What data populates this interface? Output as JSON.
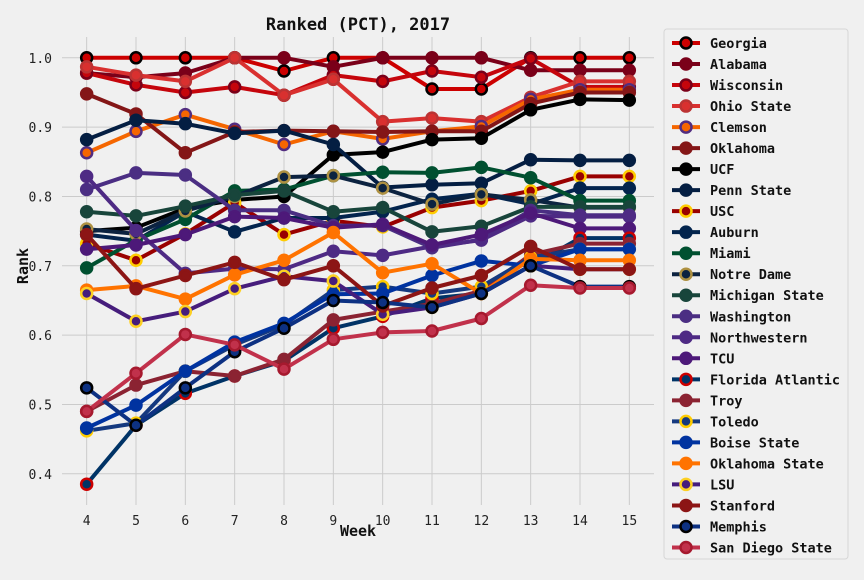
{
  "chart_data": {
    "type": "line",
    "title": "Ranked (PCT), 2017",
    "xlabel": "Week",
    "ylabel": "Rank",
    "x": [
      4,
      5,
      6,
      7,
      8,
      9,
      10,
      11,
      12,
      13,
      14,
      15
    ],
    "xlim": [
      3.5,
      15.5
    ],
    "ylim": [
      0.355,
      1.03
    ],
    "yticks": [
      0.4,
      0.5,
      0.6,
      0.7,
      0.8,
      0.9,
      1.0
    ],
    "ytick_labels": [
      "0.4",
      "0.5",
      "0.6",
      "0.7",
      "0.8",
      "0.9",
      "1.0"
    ],
    "grid": true,
    "legend_position": "right",
    "series": [
      {
        "name": "Georgia",
        "color": "#cc0000",
        "edge": "#000000",
        "values": [
          1.0,
          1.0,
          1.0,
          1.0,
          0.981,
          1.0,
          1.0,
          0.955,
          0.955,
          1.0,
          1.0,
          1.0
        ]
      },
      {
        "name": "Alabama",
        "color": "#7a0019",
        "edge": "#7a0019",
        "values": [
          0.978,
          0.972,
          0.978,
          1.0,
          1.0,
          0.987,
          1.0,
          1.0,
          1.0,
          0.982,
          0.982,
          0.982
        ]
      },
      {
        "name": "Wisconsin",
        "color": "#c5050c",
        "edge": "#7a0019",
        "values": [
          0.978,
          0.961,
          0.95,
          0.958,
          0.946,
          0.975,
          0.966,
          0.981,
          0.972,
          0.999,
          0.958,
          0.958
        ]
      },
      {
        "name": "Ohio State",
        "color": "#d9302f",
        "edge": "#bb3333",
        "values": [
          0.987,
          0.975,
          0.966,
          1.0,
          0.946,
          0.969,
          0.908,
          0.913,
          0.908,
          0.943,
          0.966,
          0.966
        ]
      },
      {
        "name": "Clemson",
        "color": "#f56600",
        "edge": "#522d80",
        "values": [
          0.863,
          0.894,
          0.918,
          0.897,
          0.875,
          0.894,
          0.883,
          0.894,
          0.901,
          0.94,
          0.954,
          0.954
        ]
      },
      {
        "name": "Oklahoma",
        "color": "#841617",
        "edge": "#841617",
        "values": [
          0.948,
          0.919,
          0.863,
          0.893,
          0.895,
          0.894,
          0.893,
          0.894,
          0.894,
          0.934,
          0.95,
          0.95
        ]
      },
      {
        "name": "UCF",
        "color": "#000000",
        "edge": "#000000",
        "values": [
          0.75,
          0.755,
          0.783,
          0.795,
          0.8,
          0.86,
          0.864,
          0.882,
          0.884,
          0.925,
          0.94,
          0.939
        ]
      },
      {
        "name": "Penn State",
        "color": "#041e42",
        "edge": "#041e42",
        "values": [
          0.882,
          0.91,
          0.905,
          0.891,
          0.895,
          0.875,
          0.813,
          0.817,
          0.819,
          0.853,
          0.852,
          0.852
        ]
      },
      {
        "name": "USC",
        "color": "#990000",
        "edge": "#ffcc00",
        "values": [
          0.732,
          0.708,
          0.746,
          0.791,
          0.745,
          0.765,
          0.756,
          0.784,
          0.794,
          0.808,
          0.829,
          0.829
        ]
      },
      {
        "name": "Auburn",
        "color": "#03244d",
        "edge": "#03244d",
        "values": [
          0.745,
          0.736,
          0.778,
          0.749,
          0.769,
          0.769,
          0.778,
          0.796,
          0.804,
          0.789,
          0.812,
          0.812
        ]
      },
      {
        "name": "Miami",
        "color": "#005030",
        "edge": "#005030",
        "values": [
          0.697,
          0.737,
          0.767,
          0.808,
          0.81,
          0.83,
          0.835,
          0.834,
          0.842,
          0.827,
          0.794,
          0.794
        ]
      },
      {
        "name": "Notre Dame",
        "color": "#0c2340",
        "edge": "#ae9142",
        "values": [
          0.753,
          0.746,
          0.779,
          0.8,
          0.828,
          0.83,
          0.812,
          0.789,
          0.803,
          0.795,
          0.784,
          0.784
        ]
      },
      {
        "name": "Michigan State",
        "color": "#18453b",
        "edge": "#18453b",
        "values": [
          0.778,
          0.772,
          0.786,
          0.802,
          0.808,
          0.778,
          0.784,
          0.749,
          0.757,
          0.785,
          0.785,
          0.785
        ]
      },
      {
        "name": "Washington",
        "color": "#4b2e83",
        "edge": "#4b2e83",
        "values": [
          0.81,
          0.834,
          0.831,
          0.78,
          0.78,
          0.758,
          0.758,
          0.726,
          0.738,
          0.78,
          0.773,
          0.773
        ]
      },
      {
        "name": "Northwestern",
        "color": "#4e2a84",
        "edge": "#4e2a84",
        "values": [
          0.829,
          0.751,
          0.689,
          0.696,
          0.695,
          0.721,
          0.715,
          0.728,
          0.737,
          0.772,
          0.771,
          0.771
        ]
      },
      {
        "name": "TCU",
        "color": "#4d1979",
        "edge": "#4d1979",
        "values": [
          0.724,
          0.73,
          0.745,
          0.771,
          0.769,
          0.755,
          0.76,
          0.73,
          0.745,
          0.776,
          0.754,
          0.754
        ]
      },
      {
        "name": "Florida Atlantic",
        "color": "#003366",
        "edge": "#cc0000",
        "values": [
          0.385,
          0.47,
          0.516,
          0.541,
          0.563,
          0.61,
          0.627,
          0.653,
          0.66,
          0.7,
          0.74,
          0.74
        ]
      },
      {
        "name": "Troy",
        "color": "#8b2332",
        "edge": "#8b2332",
        "values": [
          0.49,
          0.528,
          0.548,
          0.541,
          0.565,
          0.622,
          0.634,
          0.645,
          0.664,
          0.716,
          0.732,
          0.732
        ]
      },
      {
        "name": "Toledo",
        "color": "#15397f",
        "edge": "#ffcc00",
        "values": [
          0.462,
          0.473,
          0.548,
          0.586,
          0.615,
          0.665,
          0.67,
          0.66,
          0.67,
          0.712,
          0.724,
          0.724
        ]
      },
      {
        "name": "Boise State",
        "color": "#0033a0",
        "edge": "#0033a0",
        "values": [
          0.466,
          0.499,
          0.548,
          0.59,
          0.617,
          0.659,
          0.66,
          0.686,
          0.707,
          0.7,
          0.724,
          0.724
        ]
      },
      {
        "name": "Oklahoma State",
        "color": "#ff7300",
        "edge": "#ff7300",
        "values": [
          0.665,
          0.671,
          0.652,
          0.687,
          0.708,
          0.748,
          0.69,
          0.703,
          0.66,
          0.71,
          0.708,
          0.708
        ]
      },
      {
        "name": "LSU",
        "color": "#461d7c",
        "edge": "#fdd023",
        "values": [
          0.66,
          0.62,
          0.634,
          0.667,
          0.685,
          0.678,
          0.63,
          0.64,
          0.66,
          0.7,
          0.695,
          0.695
        ]
      },
      {
        "name": "Stanford",
        "color": "#8c1515",
        "edge": "#8c1515",
        "values": [
          0.745,
          0.667,
          0.686,
          0.705,
          0.68,
          0.7,
          0.642,
          0.668,
          0.686,
          0.728,
          0.695,
          0.695
        ]
      },
      {
        "name": "Memphis",
        "color": "#0d3182",
        "edge": "#000000",
        "values": [
          0.524,
          0.47,
          0.524,
          0.576,
          0.61,
          0.65,
          0.647,
          0.64,
          0.66,
          0.7,
          0.67,
          0.67
        ]
      },
      {
        "name": "San Diego State",
        "color": "#c1314b",
        "edge": "#a6192e",
        "values": [
          0.49,
          0.545,
          0.601,
          0.586,
          0.551,
          0.594,
          0.604,
          0.606,
          0.624,
          0.672,
          0.668,
          0.668
        ]
      }
    ]
  }
}
